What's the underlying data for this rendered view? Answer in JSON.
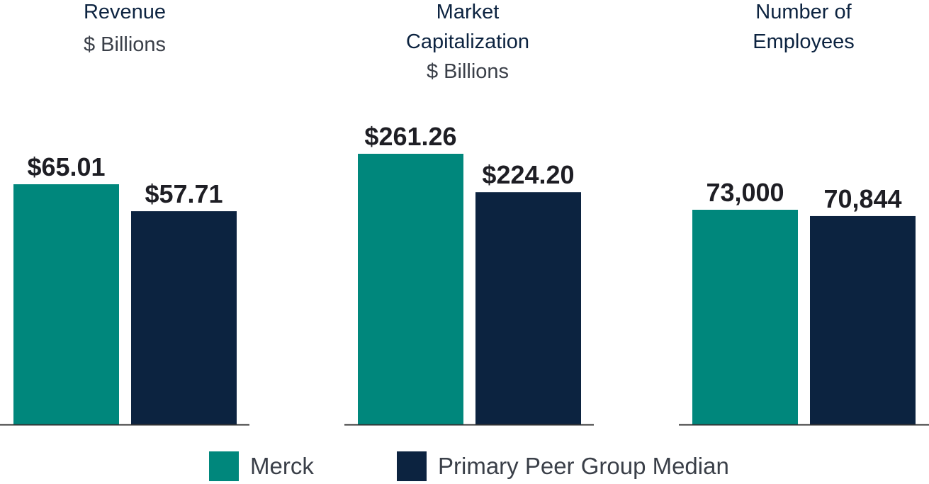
{
  "colors": {
    "merck": "#00877c",
    "peer": "#0c2340",
    "value_text": "#1e1e24",
    "axis": "#333333"
  },
  "legend": {
    "merck_label": "Merck",
    "peer_label": "Primary Peer Group Median"
  },
  "chart_data": [
    {
      "type": "bar",
      "title": "Revenue",
      "subtitle": "$ Billions",
      "categories": [
        "Merck",
        "Primary Peer Group Median"
      ],
      "values": [
        65.01,
        57.71
      ],
      "labels": [
        "$65.01",
        "$57.71"
      ]
    },
    {
      "type": "bar",
      "title": "Market Capitalization",
      "subtitle": "$ Billions",
      "categories": [
        "Merck",
        "Primary Peer Group Median"
      ],
      "values": [
        261.26,
        224.2
      ],
      "labels": [
        "$261.26",
        "$224.20"
      ]
    },
    {
      "type": "bar",
      "title": "Number of Employees",
      "subtitle": "",
      "categories": [
        "Merck",
        "Primary Peer Group Median"
      ],
      "values": [
        73000,
        70844
      ],
      "labels": [
        "73,000",
        "70,844"
      ]
    }
  ]
}
